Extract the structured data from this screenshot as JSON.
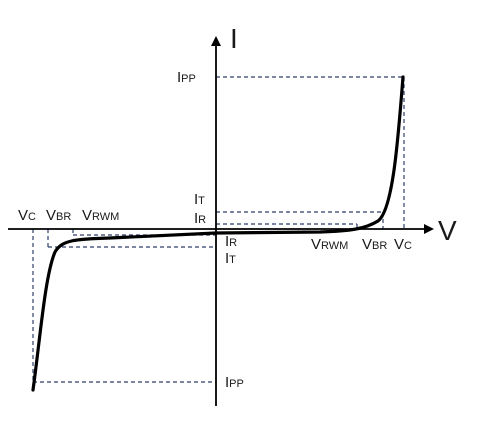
{
  "axes": {
    "y_name": "I",
    "x_name": "V"
  },
  "labels": {
    "ipp_top": {
      "main": "I",
      "sub": "PP"
    },
    "it_top": {
      "main": "I",
      "sub": "T"
    },
    "ir_top": {
      "main": "I",
      "sub": "R"
    },
    "ir_bottom": {
      "main": "I",
      "sub": "R"
    },
    "it_bottom": {
      "main": "I",
      "sub": "T"
    },
    "ipp_bottom": {
      "main": "I",
      "sub": "PP"
    },
    "vc_left": {
      "main": "V",
      "sub": "C"
    },
    "vbr_left": {
      "main": "V",
      "sub": "BR"
    },
    "vrwm_left": {
      "main": "V",
      "sub": "RWM"
    },
    "vrwm_right": {
      "main": "V",
      "sub": "RWM"
    },
    "vbr_right": {
      "main": "V",
      "sub": "BR"
    },
    "vc_right": {
      "main": "V",
      "sub": "C"
    }
  },
  "colors": {
    "curve": "#000000",
    "dashed": "#2f3f6b",
    "axis": "#000000"
  }
}
